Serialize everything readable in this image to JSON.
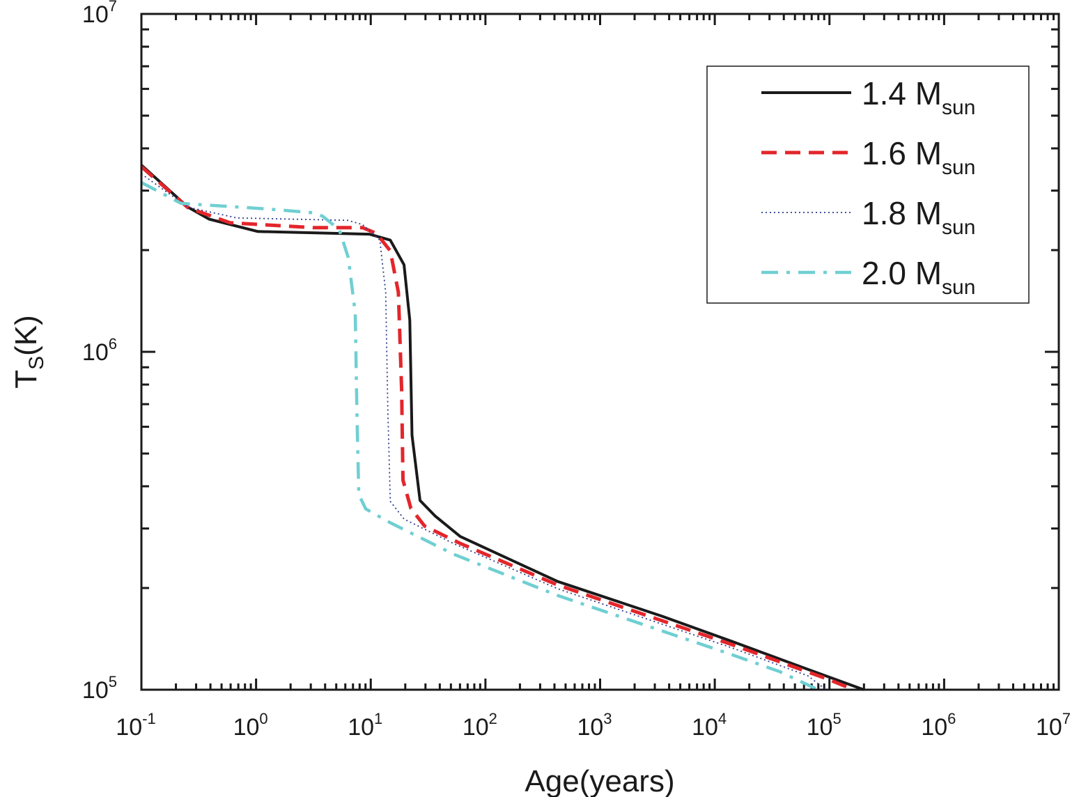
{
  "chart_data": {
    "type": "line",
    "xlabel": "Age(years)",
    "ylabel_main": "T",
    "ylabel_sub": "S",
    "ylabel_unit": "(K)",
    "xscale": "log",
    "yscale": "log",
    "xlim": [
      0.1,
      10000000
    ],
    "ylim": [
      100000,
      10000000
    ],
    "x_ticks": [
      {
        "base": "10",
        "exp": "-1"
      },
      {
        "base": "10",
        "exp": "0"
      },
      {
        "base": "10",
        "exp": "1"
      },
      {
        "base": "10",
        "exp": "2"
      },
      {
        "base": "10",
        "exp": "3"
      },
      {
        "base": "10",
        "exp": "4"
      },
      {
        "base": "10",
        "exp": "5"
      },
      {
        "base": "10",
        "exp": "6"
      },
      {
        "base": "10",
        "exp": "7"
      }
    ],
    "y_ticks": [
      {
        "base": "10",
        "exp": "5"
      },
      {
        "base": "10",
        "exp": "6"
      },
      {
        "base": "10",
        "exp": "7"
      }
    ],
    "grid": false,
    "legend_position": "top-right",
    "series": [
      {
        "name": "1.4 M",
        "name_sub": "sun",
        "color": "#1a1a1a",
        "style": "solid",
        "x": [
          0.1,
          0.255,
          0.389,
          1.035,
          9.7,
          14.8,
          19.5,
          21.9,
          22.9,
          26.9,
          36.3,
          60.3,
          427,
          3467,
          14125,
          74131,
          199526
        ],
        "y": [
          3570000,
          2680000,
          2470000,
          2270000,
          2230000,
          2140000,
          1810000,
          1240000,
          566000,
          363000,
          327000,
          284000,
          209000,
          165000,
          139000,
          113000,
          100000
        ]
      },
      {
        "name": "1.6 M",
        "name_sub": "sun",
        "color": "#e3262b",
        "style": "dashed",
        "x": [
          0.1,
          0.255,
          0.592,
          3.16,
          8.5,
          11.2,
          14.8,
          17.4,
          18.6,
          19.1,
          22.4,
          29.5,
          60.3,
          427,
          14125,
          100000,
          162181
        ],
        "y": [
          3530000,
          2670000,
          2410000,
          2330000,
          2330000,
          2240000,
          1990000,
          1500000,
          770000,
          417000,
          344000,
          305000,
          271000,
          204000,
          136000,
          107000,
          100000
        ]
      },
      {
        "name": "1.8 M",
        "name_sub": "sun",
        "color": "#2e3a8c",
        "style": "dotted",
        "x": [
          0.1,
          0.255,
          0.679,
          6.3,
          8.5,
          12.0,
          13.5,
          14.1,
          14.8,
          19.5,
          52.5,
          427,
          14125,
          64565,
          93325
        ],
        "y": [
          3360000,
          2680000,
          2490000,
          2450000,
          2380000,
          2140000,
          1500000,
          668000,
          361000,
          320000,
          271000,
          199000,
          133000,
          110000,
          100000
        ]
      },
      {
        "name": "2.0 M",
        "name_sub": "sun",
        "color": "#6fcfd2",
        "style": "dashdot",
        "x": [
          0.1,
          0.222,
          1.19,
          3.16,
          3.8,
          5.32,
          6.37,
          7.33,
          7.59,
          7.87,
          9.04,
          14.8,
          52.5,
          427,
          14125,
          37154,
          79433
        ],
        "y": [
          3170000,
          2750000,
          2650000,
          2580000,
          2520000,
          2300000,
          1900000,
          1300000,
          640000,
          378000,
          343000,
          312000,
          252000,
          190000,
          127000,
          113000,
          100000
        ]
      }
    ]
  }
}
